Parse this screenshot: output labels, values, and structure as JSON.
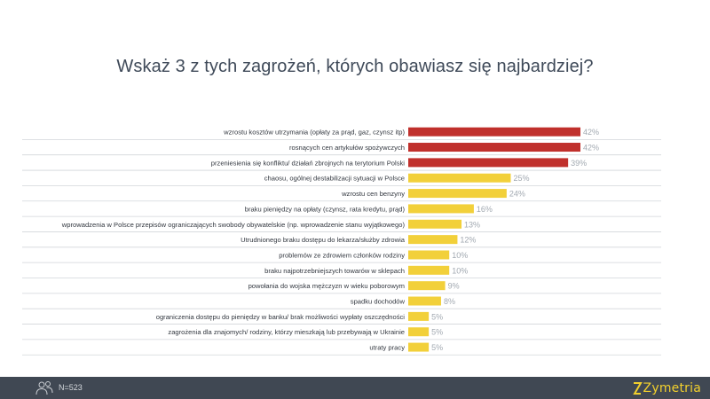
{
  "chart_data": {
    "type": "bar",
    "orientation": "horizontal",
    "title": "Wskaż 3 z tych zagrożeń, których obawiasz się najbardziej?",
    "value_suffix": "%",
    "xlim": [
      0,
      42
    ],
    "categories": [
      "wzrostu kosztów utrzymania (opłaty za prąd, gaz, czynsz itp)",
      "rosnących cen artykułów spożywczych",
      "przeniesienia się konfliktu/ działań zbrojnych na terytorium Polski",
      "chaosu, ogólnej destabilizacji sytuacji w Polsce",
      "wzrostu cen benzyny",
      "braku pieniędzy na opłaty (czynsz, rata kredytu, prąd)",
      "wprowadzenia w Polsce przepisów ograniczających swobody obywatelskie (np. wprowadzenie stanu wyjątkowego)",
      "Utrudnionego braku dostępu do lekarza/służby zdrowia",
      "problemów ze zdrowiem członków rodziny",
      "braku najpotrzebniejszych towarów w sklepach",
      "powołania do wojska mężczyzn w wieku poborowym",
      "spadku dochodów",
      "ograniczenia dostępu do pieniędzy w banku/ brak możliwości wypłaty oszczędności",
      "zagrożenia dla znajomych/ rodziny, którzy mieszkają lub przebywają w Ukrainie",
      "utraty pracy"
    ],
    "values": [
      42,
      42,
      39,
      25,
      24,
      16,
      13,
      12,
      10,
      10,
      9,
      8,
      5,
      5,
      5
    ],
    "highlight_count": 3
  },
  "colors": {
    "highlight": "#c0302c",
    "normal": "#f2d03a",
    "value_label": "#a2a9b1",
    "category_label": "#333840",
    "row_divider": "#d2d6da",
    "title": "#3f4a59",
    "footer_bg": "#404853",
    "logo": "#f2d02d"
  },
  "footer": {
    "sample": "N=523",
    "logo": "Zymetria",
    "people_icon": "people-icon"
  }
}
